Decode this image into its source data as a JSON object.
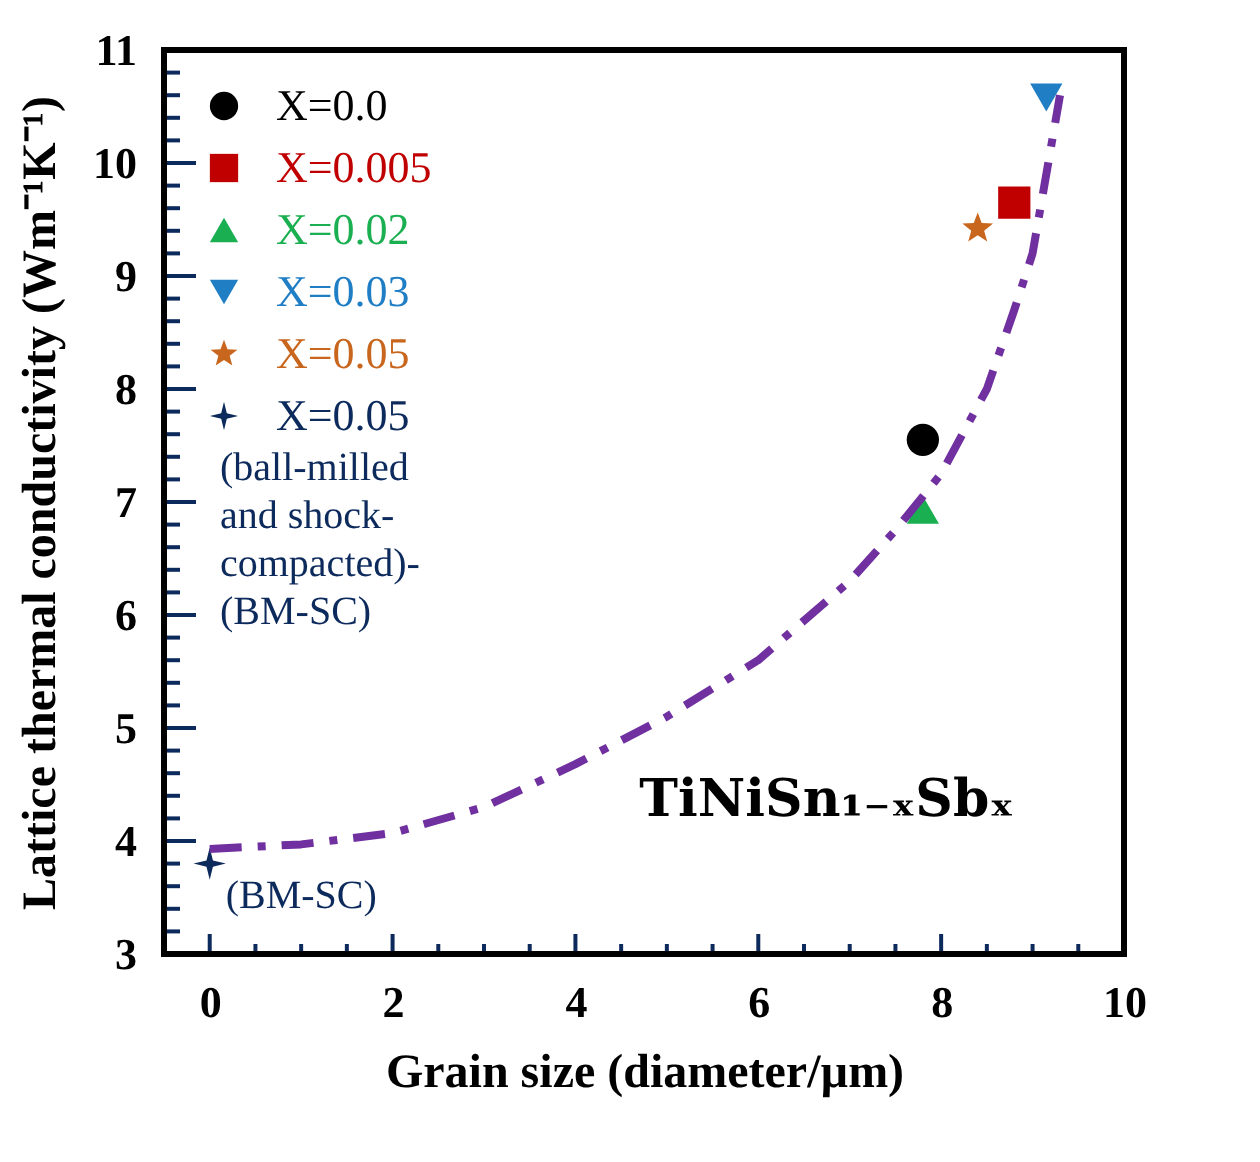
{
  "chart_data": {
    "type": "scatter",
    "xlabel": "Grain size (diameter/µm)",
    "ylabel": "Lattice thermal conductivity (Wm⁻¹K⁻¹)",
    "xlim": [
      -0.5,
      10
    ],
    "ylim": [
      3,
      11
    ],
    "xticks": [
      0,
      {
        "value": 0.5,
        "label": null
      },
      {
        "value": 1,
        "label": null
      },
      {
        "value": 1.5,
        "label": null
      },
      2,
      {
        "value": 2.5,
        "label": null
      },
      {
        "value": 3,
        "label": null
      },
      {
        "value": 3.5,
        "label": null
      },
      4,
      {
        "value": 4.5,
        "label": null
      },
      {
        "value": 5,
        "label": null
      },
      {
        "value": 5.5,
        "label": null
      },
      6,
      {
        "value": 6.5,
        "label": null
      },
      {
        "value": 7,
        "label": null
      },
      {
        "value": 7.5,
        "label": null
      },
      8,
      {
        "value": 8.5,
        "label": null
      },
      {
        "value": 9,
        "label": null
      },
      {
        "value": 9.5,
        "label": null
      },
      10
    ],
    "yticks": [
      3,
      {
        "value": 3.2,
        "label": null
      },
      {
        "value": 3.4,
        "label": null
      },
      {
        "value": 3.6,
        "label": null
      },
      {
        "value": 3.8,
        "label": null
      },
      4,
      {
        "value": 4.2,
        "label": null
      },
      {
        "value": 4.4,
        "label": null
      },
      {
        "value": 4.6,
        "label": null
      },
      {
        "value": 4.8,
        "label": null
      },
      5,
      {
        "value": 5.2,
        "label": null
      },
      {
        "value": 5.4,
        "label": null
      },
      {
        "value": 5.6,
        "label": null
      },
      {
        "value": 5.8,
        "label": null
      },
      6,
      {
        "value": 6.2,
        "label": null
      },
      {
        "value": 6.4,
        "label": null
      },
      {
        "value": 6.6,
        "label": null
      },
      {
        "value": 6.8,
        "label": null
      },
      7,
      {
        "value": 7.2,
        "label": null
      },
      {
        "value": 7.4,
        "label": null
      },
      {
        "value": 7.6,
        "label": null
      },
      {
        "value": 7.8,
        "label": null
      },
      8,
      {
        "value": 8.2,
        "label": null
      },
      {
        "value": 8.4,
        "label": null
      },
      {
        "value": 8.6,
        "label": null
      },
      {
        "value": 8.8,
        "label": null
      },
      9,
      {
        "value": 9.2,
        "label": null
      },
      {
        "value": 9.4,
        "label": null
      },
      {
        "value": 9.6,
        "label": null
      },
      {
        "value": 9.8,
        "label": null
      },
      10,
      {
        "value": 10.2,
        "label": null
      },
      {
        "value": 10.4,
        "label": null
      },
      {
        "value": 10.6,
        "label": null
      },
      {
        "value": 10.8,
        "label": null
      },
      11
    ],
    "grid": false,
    "legend": "top left",
    "series": [
      {
        "name": "X=0.0",
        "color": "#000000",
        "marker": "circle",
        "x": [
          7.8
        ],
        "values": [
          7.55
        ]
      },
      {
        "name": "X=0.005",
        "color": "#c00000",
        "marker": "square",
        "x": [
          8.8
        ],
        "values": [
          9.65
        ]
      },
      {
        "name": "X=0.02",
        "color": "#1aaf50",
        "marker": "triangle",
        "x": [
          7.8
        ],
        "values": [
          6.93
        ]
      },
      {
        "name": "X=0.03",
        "color": "#1f7ec4",
        "marker": "triangle-down",
        "x": [
          9.15
        ],
        "values": [
          10.58
        ]
      },
      {
        "name": "X=0.05",
        "color": "#c8661e",
        "marker": "star",
        "x": [
          8.4
        ],
        "values": [
          9.42
        ]
      },
      {
        "name": "X=0.05\n(ball-milled\nand shock-\ncompacted)-\n(BM-SC)",
        "color": "#0d2a5c",
        "marker": "cross",
        "x": [
          0
        ],
        "values": [
          3.8
        ]
      },
      {
        "type": "line",
        "color": "#7030a0",
        "line_style": "dashed",
        "marker": "none",
        "x": [
          0,
          1,
          2,
          3,
          4,
          5,
          6,
          7,
          7.5,
          8,
          8.5,
          8.8,
          9,
          9.3
        ],
        "values": [
          3.93,
          3.97,
          4.07,
          4.3,
          4.68,
          5.1,
          5.6,
          6.3,
          6.75,
          7.25,
          8.0,
          8.7,
          9.2,
          10.6
        ]
      }
    ],
    "annotations": [
      {
        "text": "(BM-SC)",
        "x": 0,
        "y": 3.8
      },
      "TiNiSn₁₋ₓSbₓ"
    ]
  }
}
